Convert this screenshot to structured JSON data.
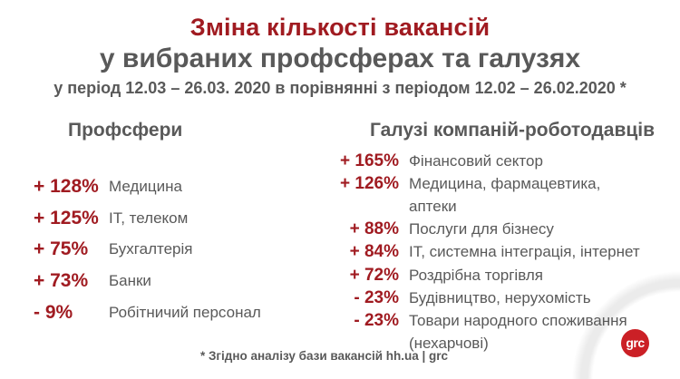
{
  "header": {
    "title_line1": "Зміна кількості вакансій",
    "title_line2": "у вибраних профсферах та галузях",
    "subtitle": "у період 12.03 – 26.03. 2020 в порівнянні з періодом 12.02 – 26.02.2020 *"
  },
  "chart_data": {
    "type": "table",
    "title": "Зміна кількості вакансій у вибраних профсферах та галузях",
    "period": "12.03 – 26.03.2020 у порівнянні з 12.02 – 26.02.2020",
    "unit": "зміна кількості вакансій, %",
    "groups": [
      {
        "name": "Профсфери",
        "items": [
          {
            "display": "+ 128%",
            "change_pct": 128,
            "label": "Медицина"
          },
          {
            "display": "+ 125%",
            "change_pct": 125,
            "label": "IT, телеком"
          },
          {
            "display": "+ 75%",
            "change_pct": 75,
            "label": "Бухгалтерія"
          },
          {
            "display": "+ 73%",
            "change_pct": 73,
            "label": "Банки"
          },
          {
            "display": "- 9%",
            "change_pct": -9,
            "label": "Робітничий персонал"
          }
        ]
      },
      {
        "name": "Галузі компаній-роботодавців",
        "items": [
          {
            "display": "+ 165%",
            "change_pct": 165,
            "label": "Фінансовий сектор"
          },
          {
            "display": "+ 126%",
            "change_pct": 126,
            "label": "Медицина, фармацевтика, аптеки"
          },
          {
            "display": "+ 88%",
            "change_pct": 88,
            "label": "Послуги для бізнесу"
          },
          {
            "display": "+ 84%",
            "change_pct": 84,
            "label": "IT, системна інтеграція, інтернет"
          },
          {
            "display": "+ 72%",
            "change_pct": 72,
            "label": "Роздрібна торгівля"
          },
          {
            "display": "- 23%",
            "change_pct": -23,
            "label": "Будівництво, нерухомість"
          },
          {
            "display": "- 23%",
            "change_pct": -23,
            "label": "Товари народного споживання (нехарчові)"
          }
        ]
      }
    ]
  },
  "footer": {
    "note": "* Згідно аналізу бази вакансій hh.ua | grc"
  },
  "logo": {
    "text": "grc"
  },
  "colors": {
    "accent_red": "#A01B21",
    "text_gray": "#595959",
    "logo_red": "#CB2026",
    "swoosh_gray": "#EBEBEB"
  }
}
